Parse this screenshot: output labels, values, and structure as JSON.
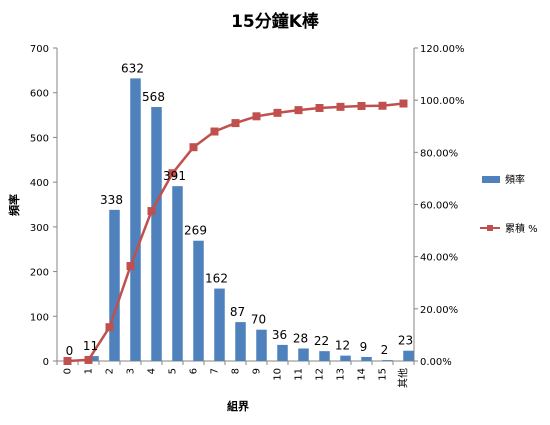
{
  "chart_data": {
    "type": "bar",
    "title": "15分鐘K棒",
    "xlabel": "組界",
    "ylabel": "頻率",
    "categories": [
      "0",
      "1",
      "2",
      "3",
      "4",
      "5",
      "6",
      "7",
      "8",
      "9",
      "10",
      "11",
      "12",
      "13",
      "14",
      "15",
      "其他"
    ],
    "series": [
      {
        "name": "頻率",
        "type": "bar",
        "axis": "left",
        "color": "#4F81BD",
        "values": [
          0,
          11,
          338,
          632,
          568,
          391,
          269,
          162,
          87,
          70,
          36,
          28,
          22,
          12,
          9,
          2,
          23
        ]
      },
      {
        "name": "累積 %",
        "type": "line",
        "axis": "right",
        "color": "#C0504D",
        "values": [
          0.0,
          0.41,
          12.95,
          36.4,
          57.48,
          71.99,
          81.97,
          87.98,
          91.21,
          93.81,
          95.14,
          96.18,
          97.0,
          97.44,
          97.77,
          97.85,
          98.71
        ]
      }
    ],
    "ylim": [
      0,
      700
    ],
    "y_ticks": [
      "0",
      "100",
      "200",
      "300",
      "400",
      "500",
      "600",
      "700"
    ],
    "y2lim": [
      0,
      120
    ],
    "y2_ticks": [
      "0.00%",
      "20.00%",
      "40.00%",
      "60.00%",
      "80.00%",
      "100.00%",
      "120.00%"
    ],
    "legend_position": "right",
    "grid": false
  }
}
